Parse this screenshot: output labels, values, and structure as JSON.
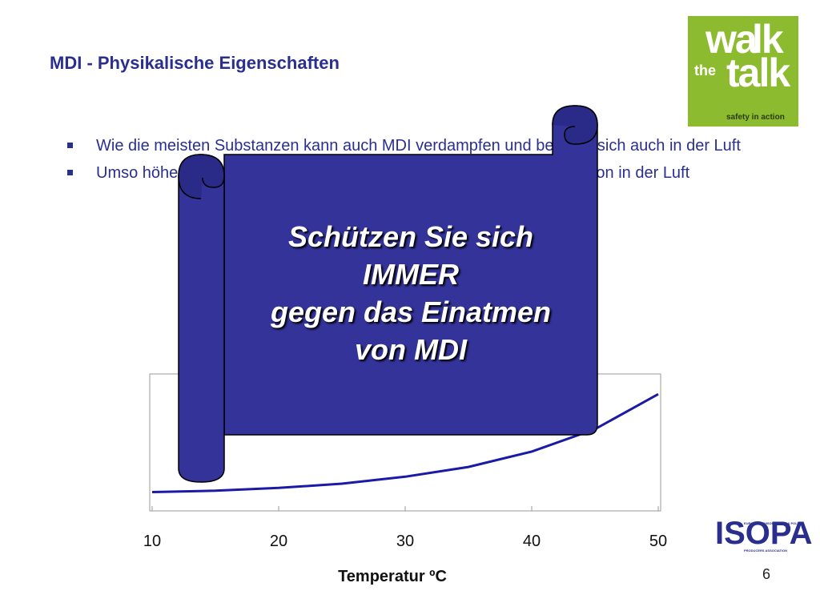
{
  "slide": {
    "title": "MDI - Physikalische Eigenschaften",
    "page_number": "6"
  },
  "logo": {
    "walk": "wa",
    "walk_k": "lk",
    "the": "the",
    "talk": "talk",
    "tagline": "safety in action"
  },
  "bullets": [
    {
      "text": "Wie die meisten Substanzen kann auch MDI verdampfen und befindet sich auch in der Luft"
    },
    {
      "text": "Umso höher die Temperatur, umso höher ist die potentielle Konzentration in der Luft"
    }
  ],
  "callout": {
    "lines": [
      "Schützen Sie sich",
      "IMMER",
      "gegen das Einatmen",
      "von MDI"
    ],
    "fill_color": "#333399"
  },
  "chart_data": {
    "type": "line",
    "xlabel": "Temperatur ºC",
    "ylabel": "",
    "x_ticks": [
      "10",
      "20",
      "30",
      "40",
      "50"
    ],
    "xlim": [
      10,
      50
    ],
    "series": [
      {
        "x": [
          10,
          15,
          20,
          25,
          30,
          35,
          40,
          45,
          50
        ],
        "y": [
          0.02,
          0.03,
          0.05,
          0.08,
          0.13,
          0.2,
          0.31,
          0.47,
          0.72
        ]
      }
    ],
    "line_color": "#1a1aa6",
    "grid": false
  },
  "isopa_logo": {
    "name": "ISOPA",
    "line1": "EUROPEAN DIISOCYANATE & POLYOL",
    "line2": "PRODUCERS ASSOCIATION"
  }
}
